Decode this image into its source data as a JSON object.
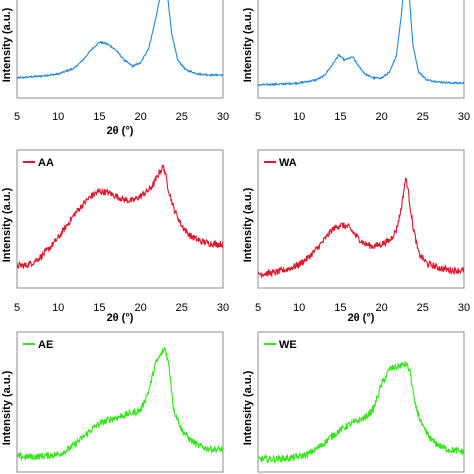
{
  "colors": {
    "blue": "#1e88e5",
    "red": "#e0162b",
    "green": "#33e617"
  },
  "chart_data": [
    {
      "type": "line",
      "xlabel": "2θ (°)",
      "ylabel": "Intensity (a.u.)",
      "xlim": [
        5,
        30
      ],
      "ylim": [
        0,
        1
      ],
      "legend": null,
      "color": "#1e88e5",
      "xticks": [
        5,
        10,
        15,
        20,
        25,
        30
      ],
      "series": [
        {
          "x": [
            5,
            8,
            10,
            12,
            13,
            14,
            15,
            16,
            17,
            18,
            19,
            20,
            21,
            21.8,
            22.4,
            22.8,
            23,
            23.3,
            23.8,
            24.5,
            25.5,
            27,
            28.5,
            30
          ],
          "y": [
            0.12,
            0.14,
            0.16,
            0.22,
            0.3,
            0.4,
            0.48,
            0.46,
            0.4,
            0.3,
            0.24,
            0.27,
            0.42,
            0.7,
            0.95,
            1.05,
            1.07,
            0.92,
            0.55,
            0.3,
            0.2,
            0.16,
            0.15,
            0.15
          ]
        }
      ]
    },
    {
      "type": "line",
      "xlabel": "",
      "ylabel": "Intensity (a.u.)",
      "xlim": [
        5,
        30
      ],
      "ylim": [
        0,
        1
      ],
      "legend": null,
      "color": "#1e88e5",
      "xticks": [
        5,
        10,
        15,
        20,
        25,
        30
      ],
      "series": [
        {
          "x": [
            5,
            8,
            10,
            12,
            13,
            14,
            14.8,
            15.5,
            16.5,
            17.2,
            18,
            19,
            20,
            21,
            21.8,
            22.4,
            22.8,
            23,
            23.3,
            23.8,
            24.5,
            25.5,
            27,
            28.5,
            30
          ],
          "y": [
            0.05,
            0.06,
            0.07,
            0.1,
            0.14,
            0.25,
            0.35,
            0.3,
            0.33,
            0.24,
            0.16,
            0.12,
            0.12,
            0.18,
            0.35,
            0.75,
            1.15,
            1.2,
            1.0,
            0.45,
            0.18,
            0.1,
            0.08,
            0.07,
            0.07
          ]
        }
      ]
    },
    {
      "type": "line",
      "xlabel": "2θ (°)",
      "ylabel": "Intensity (a.u.)",
      "xlim": [
        5,
        30
      ],
      "ylim": [
        0,
        1
      ],
      "legend": "AA",
      "color": "#e0162b",
      "xticks": [
        5,
        10,
        15,
        20,
        25,
        30
      ],
      "series": [
        {
          "x": [
            5,
            6,
            7,
            8,
            9,
            10,
            11,
            12,
            13,
            14,
            15,
            16,
            17,
            18,
            19,
            20,
            21,
            21.6,
            22.3,
            22.8,
            23.3,
            24,
            25,
            26,
            27,
            28,
            29,
            30
          ],
          "y": [
            0.12,
            0.12,
            0.15,
            0.2,
            0.27,
            0.35,
            0.45,
            0.55,
            0.63,
            0.7,
            0.74,
            0.73,
            0.7,
            0.67,
            0.66,
            0.7,
            0.75,
            0.8,
            0.9,
            0.95,
            0.78,
            0.6,
            0.45,
            0.37,
            0.33,
            0.31,
            0.3,
            0.3
          ]
        }
      ]
    },
    {
      "type": "line",
      "xlabel": "2θ (°)",
      "ylabel": "Intensity (a.u.)",
      "xlim": [
        5,
        30
      ],
      "ylim": [
        0,
        1
      ],
      "legend": "WA",
      "color": "#e0162b",
      "xticks": [
        5,
        10,
        15,
        20,
        25,
        30
      ],
      "series": [
        {
          "x": [
            5,
            7,
            9,
            10,
            11,
            12,
            13,
            14,
            15,
            16,
            17,
            18,
            19,
            20,
            21,
            21.8,
            22.4,
            22.8,
            23,
            23.3,
            23.8,
            24.5,
            25.5,
            27,
            28.5,
            30
          ],
          "y": [
            0.05,
            0.06,
            0.1,
            0.13,
            0.18,
            0.25,
            0.33,
            0.42,
            0.46,
            0.44,
            0.36,
            0.3,
            0.28,
            0.3,
            0.33,
            0.42,
            0.6,
            0.8,
            0.85,
            0.7,
            0.45,
            0.22,
            0.14,
            0.1,
            0.08,
            0.08
          ]
        }
      ]
    },
    {
      "type": "line",
      "xlabel": "",
      "ylabel": "Intensity (a.u.)",
      "xlim": [
        5,
        30
      ],
      "ylim": [
        0,
        1
      ],
      "legend": "AE",
      "color": "#33e617",
      "xticks": [],
      "series": [
        {
          "x": [
            5,
            7,
            9,
            10,
            11,
            12,
            13,
            14,
            15,
            16,
            17,
            18,
            19,
            20,
            21,
            21.8,
            22.5,
            23,
            23.5,
            24,
            25,
            26,
            27,
            28,
            29,
            30
          ],
          "y": [
            0.06,
            0.06,
            0.07,
            0.08,
            0.11,
            0.16,
            0.22,
            0.28,
            0.33,
            0.36,
            0.38,
            0.4,
            0.42,
            0.44,
            0.6,
            0.82,
            0.9,
            0.95,
            0.78,
            0.45,
            0.28,
            0.2,
            0.15,
            0.13,
            0.12,
            0.12
          ]
        }
      ]
    },
    {
      "type": "line",
      "xlabel": "",
      "ylabel": "Intensity (a.u.)",
      "xlim": [
        5,
        30
      ],
      "ylim": [
        0,
        1
      ],
      "legend": "WE",
      "color": "#33e617",
      "xticks": [],
      "series": [
        {
          "x": [
            5,
            7,
            9,
            10,
            11,
            12,
            13,
            14,
            15,
            16,
            17,
            18,
            19,
            20,
            21,
            22,
            23,
            23.5,
            24,
            25,
            26,
            27,
            28,
            29,
            30
          ],
          "y": [
            0.04,
            0.04,
            0.05,
            0.06,
            0.08,
            0.12,
            0.17,
            0.23,
            0.28,
            0.32,
            0.35,
            0.38,
            0.45,
            0.65,
            0.78,
            0.8,
            0.82,
            0.75,
            0.5,
            0.3,
            0.2,
            0.15,
            0.12,
            0.11,
            0.1
          ]
        }
      ]
    }
  ]
}
